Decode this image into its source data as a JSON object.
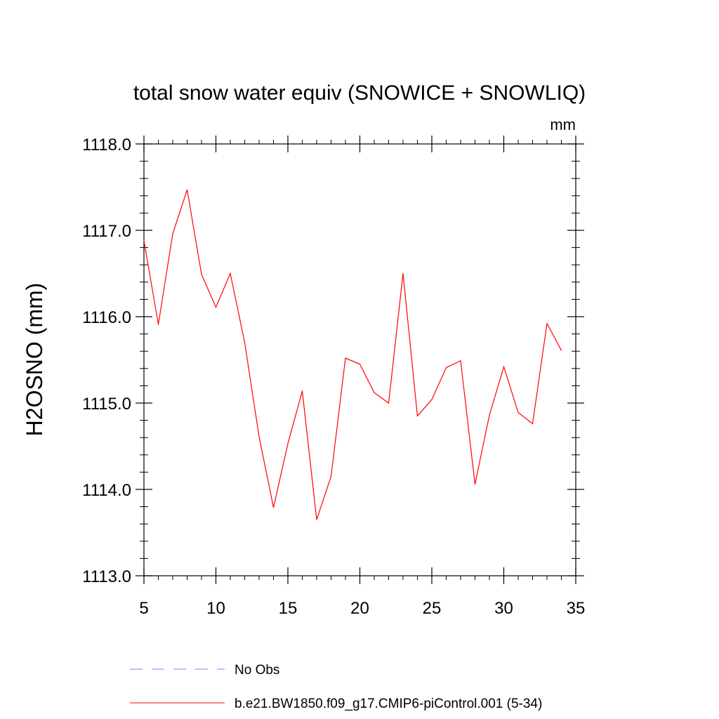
{
  "chart_data": {
    "type": "line",
    "title": "total snow water equiv (SNOWICE + SNOWLIQ)",
    "units": "mm",
    "xlabel": "",
    "ylabel": "H2OSNO  (mm)",
    "xlim": [
      5,
      35
    ],
    "ylim": [
      1113.0,
      1118.0
    ],
    "xticks": [
      5,
      10,
      15,
      20,
      25,
      30,
      35
    ],
    "xtick_labels": [
      "5",
      "10",
      "15",
      "20",
      "25",
      "30",
      "35"
    ],
    "yticks": [
      1113.0,
      1114.0,
      1115.0,
      1116.0,
      1117.0,
      1118.0
    ],
    "ytick_labels": [
      "1113.0",
      "1114.0",
      "1115.0",
      "1116.0",
      "1117.0",
      "1118.0"
    ],
    "grid": false,
    "series": [
      {
        "name": "b.e21.BW1850.f09_g17.CMIP6-piControl.001 (5-34)",
        "color": "#ff0000",
        "style": "solid",
        "x": [
          5,
          6,
          7,
          8,
          9,
          10,
          11,
          12,
          13,
          14,
          15,
          16,
          17,
          18,
          19,
          20,
          21,
          22,
          23,
          24,
          25,
          26,
          27,
          28,
          29,
          30,
          31,
          32,
          33,
          34
        ],
        "y": [
          1116.88,
          1115.91,
          1116.96,
          1117.47,
          1116.49,
          1116.11,
          1116.5,
          1115.7,
          1114.61,
          1113.79,
          1114.53,
          1115.14,
          1113.65,
          1114.15,
          1115.52,
          1115.45,
          1115.12,
          1115.0,
          1116.5,
          1114.85,
          1115.04,
          1115.41,
          1115.49,
          1114.06,
          1114.86,
          1115.42,
          1114.89,
          1114.76,
          1115.92,
          1115.61
        ]
      }
    ],
    "legend": {
      "position": "bottom",
      "entries": [
        {
          "label": "No Obs",
          "color": "#8080ff",
          "style": "dashed"
        },
        {
          "label": "b.e21.BW1850.f09_g17.CMIP6-piControl.001 (5-34)",
          "color": "#ff0000",
          "style": "solid"
        }
      ]
    }
  }
}
